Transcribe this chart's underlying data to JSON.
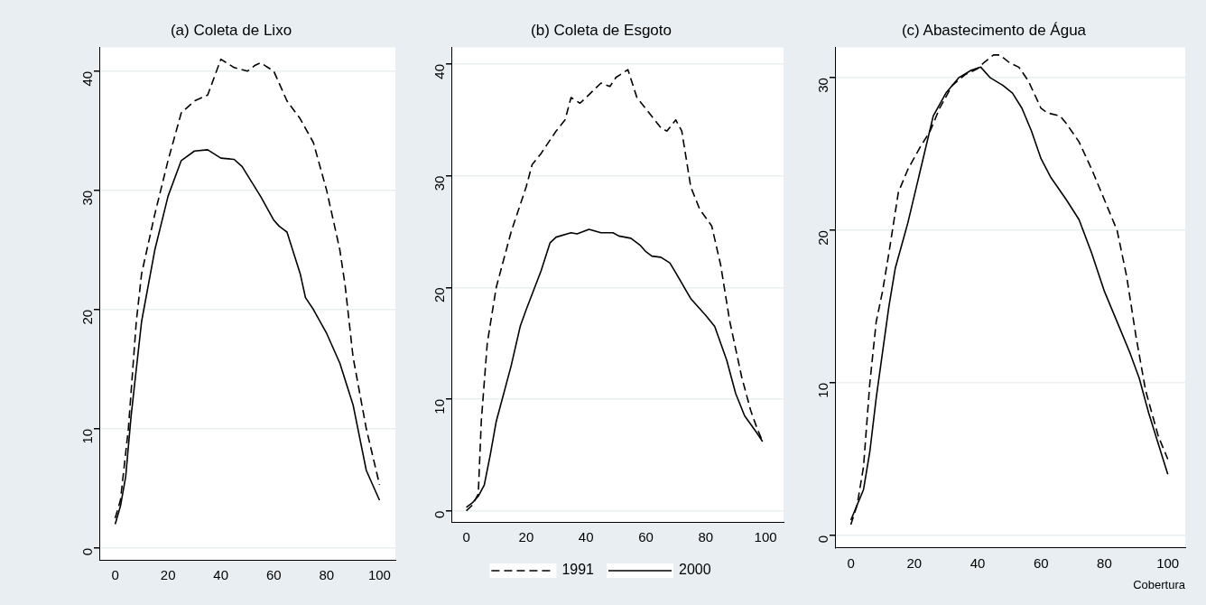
{
  "chart_data": [
    {
      "type": "line",
      "title": "(a) Coleta de Lixo",
      "xlim": [
        -6,
        106
      ],
      "xticks": [
        0,
        20,
        40,
        60,
        80,
        100
      ],
      "ylim": [
        -1,
        42
      ],
      "yticks": [
        0,
        10,
        20,
        30,
        40
      ],
      "grid": "y",
      "legend": false,
      "marker": "none",
      "series": [
        {
          "color": "#000000",
          "line_style": "dashed",
          "x": [
            0,
            2,
            5,
            8,
            10,
            15,
            20,
            25,
            30,
            35,
            40,
            45,
            50,
            53,
            55,
            60,
            65,
            70,
            75,
            80,
            85,
            87,
            90,
            95,
            100
          ],
          "values": [
            2.5,
            4,
            10,
            19,
            23,
            28,
            32.5,
            36.5,
            37.5,
            38,
            41,
            40.3,
            40,
            40.5,
            40.7,
            40,
            37.5,
            36,
            34,
            30,
            25,
            22,
            16,
            10,
            5.3
          ]
        },
        {
          "color": "#000000",
          "line_style": "solid",
          "x": [
            0,
            2,
            4,
            6,
            10,
            15,
            20,
            25,
            30,
            35,
            40,
            45,
            48,
            55,
            60,
            62,
            65,
            70,
            72,
            75,
            80,
            85,
            90,
            95,
            100
          ],
          "values": [
            2,
            3.5,
            6,
            11,
            19,
            25,
            29.5,
            32.5,
            33.3,
            33.4,
            32.7,
            32.6,
            32,
            29.5,
            27.5,
            27,
            26.5,
            23,
            21,
            20,
            18,
            15.5,
            12,
            6.5,
            4
          ]
        }
      ]
    },
    {
      "type": "line",
      "title": "(b) Coleta de Esgoto",
      "xlim": [
        -5,
        106
      ],
      "xticks": [
        0,
        20,
        40,
        60,
        80,
        100
      ],
      "ylim": [
        -1,
        41.5
      ],
      "yticks": [
        0,
        10,
        20,
        30,
        40
      ],
      "grid": "y",
      "legend": "bottom",
      "marker": "none",
      "series": [
        {
          "name": "1991",
          "color": "#000000",
          "line_style": "dashed",
          "x": [
            0,
            2,
            4,
            5,
            7,
            10,
            15,
            20,
            22,
            25,
            30,
            33,
            35,
            38,
            40,
            45,
            48,
            50,
            54,
            57,
            60,
            65,
            67,
            70,
            72,
            75,
            78,
            82,
            85,
            88,
            92,
            95,
            97,
            99
          ],
          "values": [
            0,
            0.5,
            1.5,
            8,
            15,
            20,
            25,
            29,
            31,
            32,
            34,
            35,
            37,
            36.5,
            37,
            38.3,
            38,
            38.8,
            39.5,
            37,
            36,
            34.3,
            34,
            35,
            34,
            29,
            27,
            25.5,
            22,
            17,
            12,
            9,
            7.5,
            6.2
          ]
        },
        {
          "name": "2000",
          "color": "#000000",
          "line_style": "solid",
          "x": [
            0,
            2,
            4,
            6,
            8,
            10,
            15,
            18,
            20,
            25,
            28,
            30,
            35,
            37,
            41,
            45,
            49,
            51,
            55,
            58,
            60,
            62,
            65,
            68,
            70,
            75,
            80,
            83,
            87,
            90,
            93,
            97,
            99
          ],
          "values": [
            0.3,
            0.7,
            1.3,
            2.3,
            5,
            8,
            13,
            16.5,
            18,
            21.5,
            24,
            24.5,
            24.9,
            24.8,
            25.2,
            24.9,
            24.9,
            24.6,
            24.4,
            23.8,
            23.2,
            22.8,
            22.7,
            22.2,
            21.3,
            19,
            17.5,
            16.5,
            13.5,
            10.5,
            8.5,
            7,
            6.2
          ]
        }
      ]
    },
    {
      "type": "line",
      "title": "(c) Abastecimento de Água",
      "xlabel": "Cobertura",
      "xlim": [
        -5,
        105.5
      ],
      "xticks": [
        0,
        20,
        40,
        60,
        80,
        100
      ],
      "ylim": [
        -0.8,
        32
      ],
      "yticks": [
        0,
        10,
        20,
        30
      ],
      "grid": "y",
      "legend": false,
      "marker": "none",
      "series": [
        {
          "color": "#000000",
          "line_style": "dashed",
          "x": [
            0,
            2,
            4,
            6,
            8,
            10,
            12,
            15,
            18,
            22,
            25,
            28,
            32,
            36,
            40,
            42,
            45,
            47,
            50,
            53,
            56,
            60,
            62,
            66,
            68,
            72,
            76,
            80,
            84,
            87,
            90,
            93,
            97,
            100
          ],
          "values": [
            0.7,
            2,
            4.5,
            10,
            14,
            16,
            18.5,
            22.5,
            24,
            25.5,
            26.5,
            28,
            29.5,
            30.2,
            30.6,
            31,
            31.5,
            31.5,
            31,
            30.7,
            29.8,
            28,
            27.7,
            27.5,
            27,
            25.8,
            24,
            22,
            20,
            17,
            13,
            9.5,
            6.5,
            5
          ]
        },
        {
          "color": "#000000",
          "line_style": "solid",
          "x": [
            0,
            2,
            4,
            6,
            8,
            10,
            12,
            14,
            18,
            22,
            26,
            30,
            34,
            38,
            41,
            44,
            48,
            51,
            54,
            57,
            60,
            63,
            68,
            72,
            76,
            80,
            84,
            88,
            91,
            94,
            97,
            100
          ],
          "values": [
            1,
            2,
            3,
            5.5,
            9,
            12,
            15,
            17.5,
            20.5,
            24,
            27.5,
            29,
            30,
            30.5,
            30.7,
            30,
            29.5,
            29,
            28,
            26.5,
            24.7,
            23.5,
            22,
            20.7,
            18.5,
            16,
            14,
            12,
            10.3,
            8,
            6,
            4
          ]
        }
      ]
    }
  ]
}
